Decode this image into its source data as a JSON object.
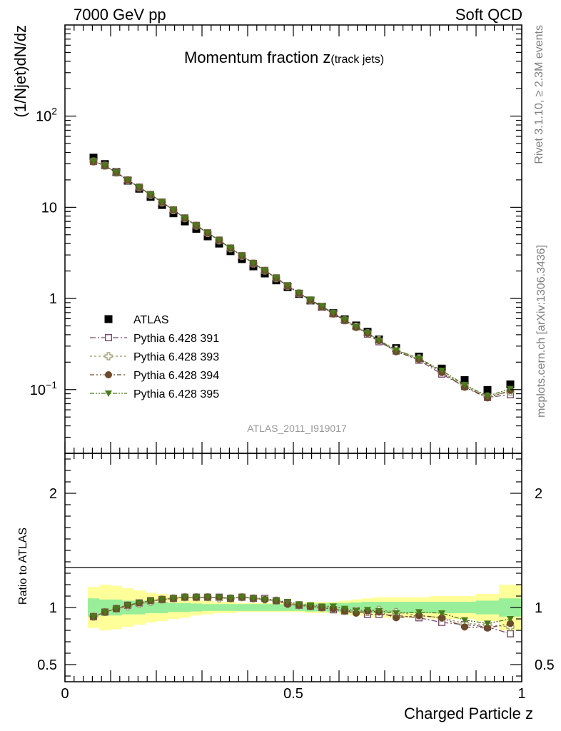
{
  "header": {
    "left": "7000 GeV pp",
    "right": "Soft QCD"
  },
  "side_labels": {
    "rivet": "Rivet 3.1.10, ≥ 2.3M events",
    "mcplots": "mcplots.cern.ch [arXiv:1306.3436]"
  },
  "chart_data": [
    {
      "type": "scatter",
      "title_main": "Momentum fraction z",
      "title_sub": "(track jets)",
      "watermark": "ATLAS_2011_I919017",
      "ylabel": "(1/Njet)dN/dz",
      "xlabel": "",
      "xlim": [
        0,
        1
      ],
      "ylim": [
        0.02,
        1000
      ],
      "yscale": "log",
      "legend_position": "lower-left",
      "yticks": [
        {
          "base": "10",
          "exp": "2"
        },
        {
          "base": "10",
          "exp": ""
        },
        {
          "base": "1",
          "exp": ""
        },
        {
          "base": "10",
          "exp": "−1"
        }
      ],
      "x": [
        0.0625,
        0.0875,
        0.1125,
        0.1375,
        0.1625,
        0.1875,
        0.2125,
        0.2375,
        0.2625,
        0.2875,
        0.3125,
        0.3375,
        0.3625,
        0.3875,
        0.4125,
        0.4375,
        0.4625,
        0.4875,
        0.5125,
        0.5375,
        0.5625,
        0.5875,
        0.6125,
        0.6375,
        0.6625,
        0.6875,
        0.725,
        0.775,
        0.825,
        0.875,
        0.925,
        0.975
      ],
      "series": [
        {
          "name": "ATLAS",
          "color": "#000000",
          "marker": "square-filled",
          "values": [
            35.0,
            29.8,
            24.3,
            19.6,
            16.0,
            13.0,
            10.6,
            8.6,
            7.0,
            5.8,
            4.8,
            4.0,
            3.3,
            2.7,
            2.25,
            1.88,
            1.58,
            1.33,
            1.12,
            0.95,
            0.81,
            0.69,
            0.59,
            0.505,
            0.43,
            0.355,
            0.285,
            0.23,
            0.17,
            0.127,
            0.099,
            0.114
          ],
          "ratio_band_inner": [
            0.08,
            0.07,
            0.07,
            0.06,
            0.06,
            0.05,
            0.05,
            0.04,
            0.04,
            0.035,
            0.03,
            0.03,
            0.03,
            0.03,
            0.03,
            0.03,
            0.03,
            0.03,
            0.03,
            0.035,
            0.035,
            0.04,
            0.04,
            0.045,
            0.05,
            0.05,
            0.05,
            0.05,
            0.05,
            0.05,
            0.06,
            0.08
          ],
          "ratio_band_outer": [
            0.18,
            0.2,
            0.19,
            0.17,
            0.15,
            0.13,
            0.12,
            0.1,
            0.09,
            0.07,
            0.06,
            0.05,
            0.05,
            0.04,
            0.04,
            0.04,
            0.04,
            0.04,
            0.04,
            0.05,
            0.05,
            0.05,
            0.06,
            0.07,
            0.08,
            0.09,
            0.09,
            0.09,
            0.1,
            0.1,
            0.12,
            0.2
          ]
        },
        {
          "name": "Pythia 6.428 391",
          "color": "#7a4a6a",
          "marker": "square-open",
          "dash": "8,3,2,3",
          "values": [
            31.8,
            28.6,
            24.1,
            19.9,
            16.6,
            13.8,
            11.4,
            9.35,
            7.65,
            6.33,
            5.25,
            4.36,
            3.57,
            2.95,
            2.43,
            2.03,
            1.68,
            1.38,
            1.14,
            0.955,
            0.81,
            0.68,
            0.575,
            0.49,
            0.405,
            0.335,
            0.265,
            0.21,
            0.148,
            0.108,
            0.082,
            0.088
          ]
        },
        {
          "name": "Pythia 6.428 393",
          "color": "#999966",
          "marker": "cross-open",
          "dash": "3,3",
          "values": [
            31.8,
            28.6,
            24.0,
            19.8,
            16.5,
            13.7,
            11.3,
            9.3,
            7.6,
            6.3,
            5.22,
            4.33,
            3.55,
            2.93,
            2.42,
            2.02,
            1.67,
            1.37,
            1.14,
            0.955,
            0.81,
            0.68,
            0.575,
            0.49,
            0.415,
            0.35,
            0.275,
            0.22,
            0.155,
            0.11,
            0.084,
            0.095
          ]
        },
        {
          "name": "Pythia 6.428 394",
          "color": "#6b4a2a",
          "marker": "circle-filled",
          "dash": "6,3,2,3,2,3",
          "values": [
            31.8,
            28.6,
            24.1,
            19.9,
            16.6,
            13.8,
            11.4,
            9.35,
            7.6,
            6.3,
            5.24,
            4.35,
            3.56,
            2.94,
            2.43,
            2.02,
            1.67,
            1.37,
            1.14,
            0.955,
            0.81,
            0.68,
            0.575,
            0.48,
            0.415,
            0.345,
            0.26,
            0.215,
            0.155,
            0.106,
            0.081,
            0.098
          ]
        },
        {
          "name": "Pythia 6.428 395",
          "color": "#4a7a1a",
          "marker": "triangle-down-filled",
          "dash": "6,2,2,2,2,2",
          "values": [
            32.0,
            28.6,
            24.1,
            19.9,
            16.6,
            13.8,
            11.4,
            9.35,
            7.6,
            6.3,
            5.24,
            4.35,
            3.56,
            2.94,
            2.43,
            2.02,
            1.68,
            1.39,
            1.15,
            0.97,
            0.82,
            0.695,
            0.585,
            0.49,
            0.42,
            0.345,
            0.27,
            0.22,
            0.162,
            0.113,
            0.085,
            0.102
          ]
        }
      ]
    },
    {
      "type": "scatter",
      "panel": "ratio",
      "xlabel": "Charged Particle z",
      "ylabel": "Ratio to ATLAS",
      "xlim": [
        0,
        1
      ],
      "ylim": [
        0.35,
        2.35
      ],
      "ytick_labels": [
        "0.5",
        "1",
        "2"
      ],
      "xtick_labels": [
        "0",
        "0.5",
        "1"
      ],
      "reference_line": 1,
      "series": [
        {
          "name": "Pythia 6.428 391",
          "values": [
            0.92,
            0.96,
            0.99,
            1.02,
            1.04,
            1.06,
            1.07,
            1.08,
            1.09,
            1.09,
            1.09,
            1.09,
            1.08,
            1.09,
            1.08,
            1.08,
            1.06,
            1.04,
            1.02,
            1.01,
            1.0,
            0.98,
            0.97,
            0.97,
            0.94,
            0.94,
            0.93,
            0.91,
            0.87,
            0.85,
            0.83,
            0.77
          ]
        },
        {
          "name": "Pythia 6.428 393",
          "values": [
            0.92,
            0.96,
            0.99,
            1.01,
            1.03,
            1.05,
            1.07,
            1.08,
            1.09,
            1.09,
            1.09,
            1.08,
            1.08,
            1.09,
            1.08,
            1.07,
            1.06,
            1.03,
            1.02,
            1.01,
            1.0,
            0.99,
            0.97,
            0.97,
            0.96,
            0.98,
            0.96,
            0.93,
            0.91,
            0.86,
            0.85,
            0.83
          ]
        },
        {
          "name": "Pythia 6.428 394",
          "values": [
            0.92,
            0.96,
            0.99,
            1.02,
            1.04,
            1.06,
            1.07,
            1.08,
            1.09,
            1.09,
            1.09,
            1.09,
            1.08,
            1.09,
            1.08,
            1.07,
            1.06,
            1.03,
            1.02,
            1.01,
            1.0,
            0.99,
            0.97,
            0.95,
            0.97,
            0.96,
            0.91,
            0.93,
            0.91,
            0.83,
            0.82,
            0.86
          ]
        },
        {
          "name": "Pythia 6.428 395",
          "values": [
            0.92,
            0.96,
            0.99,
            1.02,
            1.04,
            1.06,
            1.07,
            1.08,
            1.09,
            1.09,
            1.09,
            1.09,
            1.08,
            1.09,
            1.08,
            1.07,
            1.06,
            1.05,
            1.03,
            1.02,
            1.01,
            1.01,
            0.99,
            0.97,
            0.98,
            0.97,
            0.95,
            0.96,
            0.95,
            0.89,
            0.86,
            0.9
          ]
        }
      ]
    }
  ]
}
